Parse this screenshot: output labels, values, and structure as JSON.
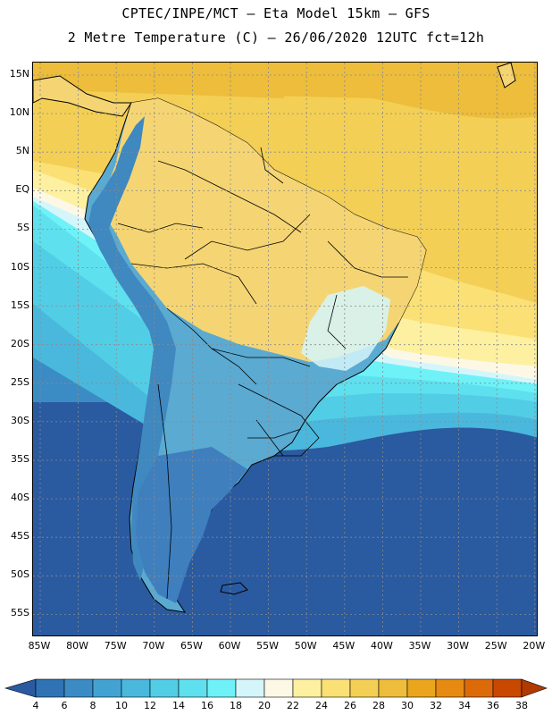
{
  "title": {
    "line1": "CPTEC/INPE/MCT –  Eta Model 15km – GFS",
    "line2": "2 Metre Temperature (C) – 26/06/2020 12UTC fct=12h"
  },
  "axes": {
    "lat_labels": [
      "15N",
      "10N",
      "5N",
      "EQ",
      "5S",
      "10S",
      "15S",
      "20S",
      "25S",
      "30S",
      "35S",
      "40S",
      "45S",
      "50S",
      "55S"
    ],
    "lon_labels": [
      "85W",
      "80W",
      "75W",
      "70W",
      "65W",
      "60W",
      "55W",
      "50W",
      "45W",
      "40W",
      "35W",
      "30W",
      "25W",
      "20W"
    ]
  },
  "legend": {
    "labels": [
      "4",
      "6",
      "8",
      "10",
      "12",
      "14",
      "16",
      "18",
      "20",
      "22",
      "24",
      "26",
      "28",
      "30",
      "32",
      "34",
      "36",
      "38"
    ],
    "colors": [
      "#2a5aa0",
      "#2f73b5",
      "#3b8cc4",
      "#42a3d2",
      "#4ab8dc",
      "#52cde6",
      "#5ee0ee",
      "#6ef2f8",
      "#d4f6fb",
      "#fdf8e6",
      "#fdf0a0",
      "#fbe075",
      "#f3cf55",
      "#edbd3b",
      "#eba51d",
      "#e68a12",
      "#dd6a08",
      "#c84800",
      "#b03a00"
    ]
  },
  "colors": {
    "ocean_warm": "#f3c84a",
    "ocean_mid": "#eed28a",
    "land_warm": "#f5d573",
    "land_cool": "#5aaad2",
    "andes": "#3f88c0",
    "boundary": "#000000",
    "grid": "#8a8a8a"
  }
}
